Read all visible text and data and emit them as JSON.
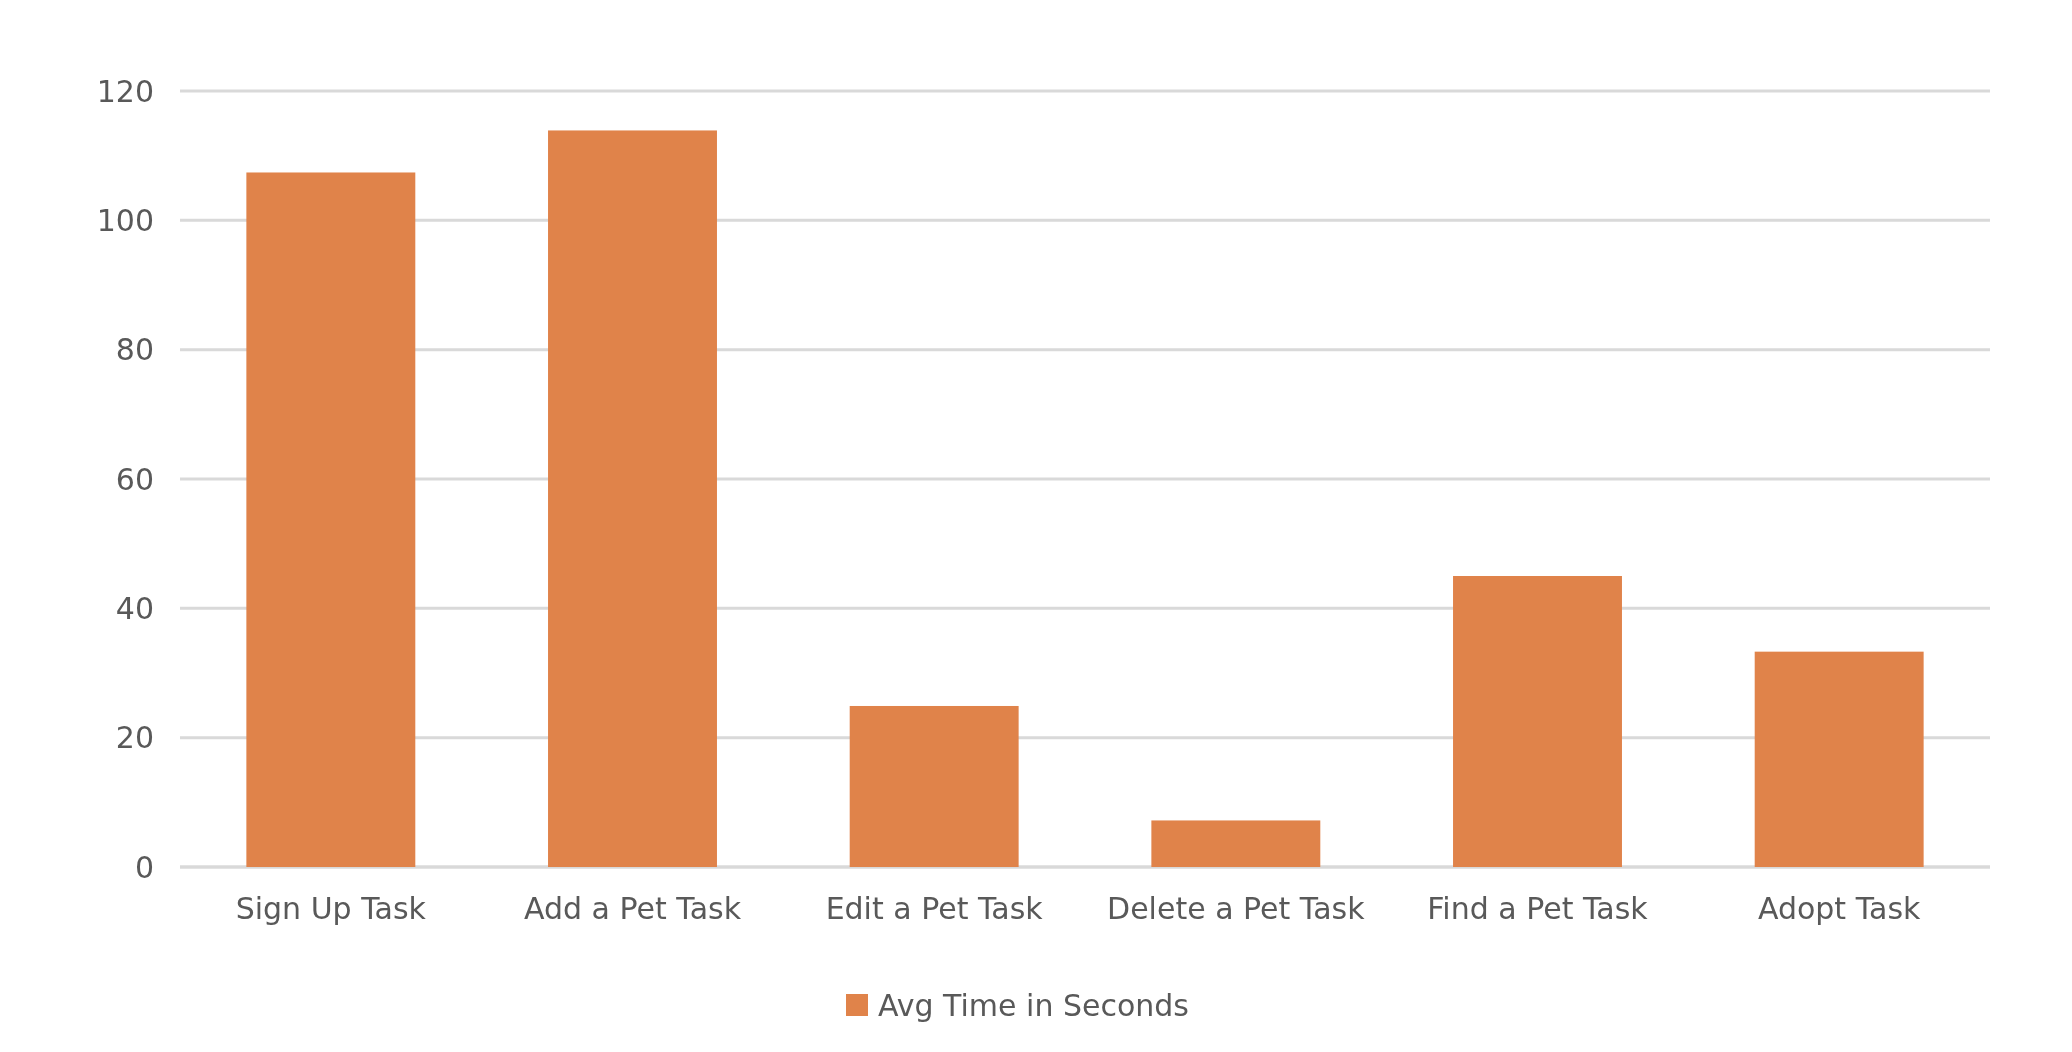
{
  "chart_data": {
    "type": "bar",
    "categories": [
      "Sign Up Task",
      "Add a Pet Task",
      "Edit a Pet Task",
      "Delete a Pet Task",
      "Find a Pet Task",
      "Adopt Task"
    ],
    "series": [
      {
        "name": "Avg Time in Seconds",
        "color": "#e0834a",
        "values": [
          107.4,
          113.9,
          24.9,
          7.2,
          45.0,
          33.3
        ]
      }
    ],
    "ylim": [
      0,
      120
    ],
    "yticks": [
      0,
      20,
      40,
      60,
      80,
      100,
      120
    ],
    "grid": "y",
    "legend": "bottom"
  }
}
